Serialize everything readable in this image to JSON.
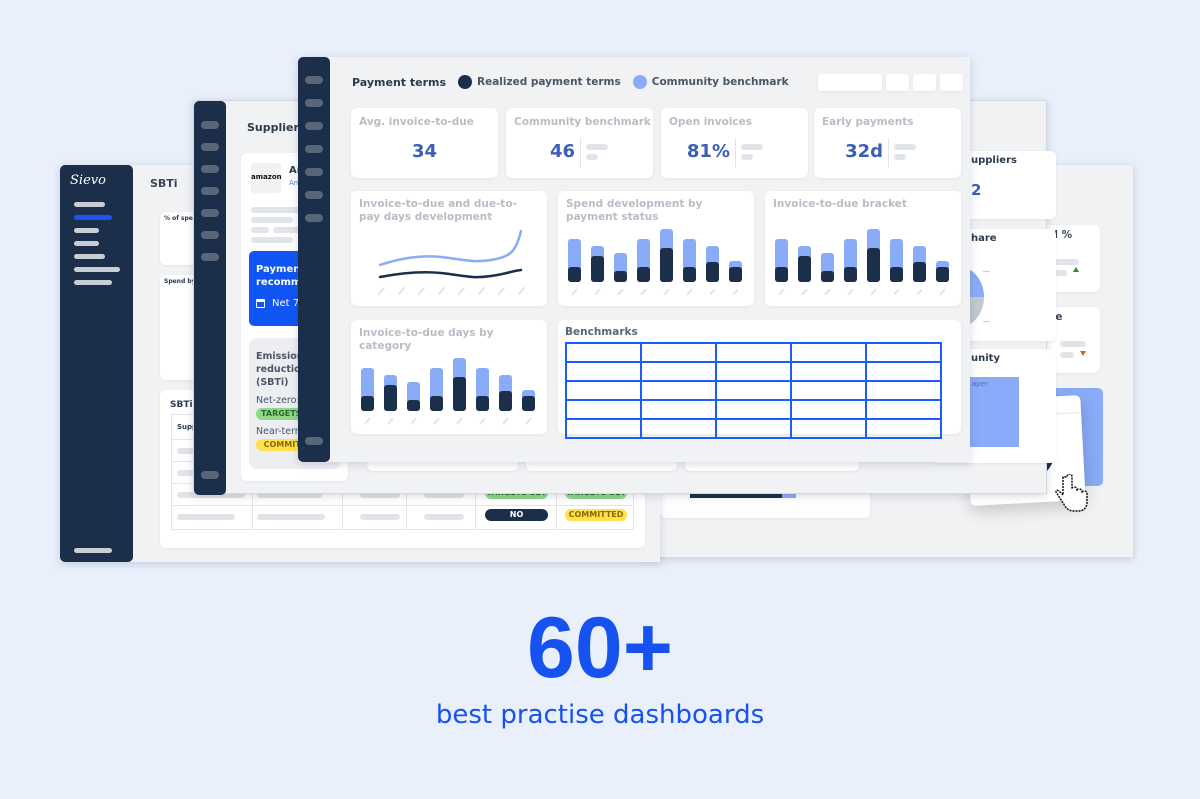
{
  "colors": {
    "navy": "#1b2f4a",
    "light_blue": "#8aabf7",
    "accent": "#1652f0",
    "kpi_value": "#3b5fb8"
  },
  "far_window": {
    "cards": [
      {
        "label": "nd %"
      },
      {
        "label": "ore"
      }
    ]
  },
  "left_window": {
    "logo": "Sievo",
    "title": "SBTi",
    "card_spend_pct_label": "% of spend",
    "card_spend_by_label": "Spend by",
    "sbti_table": {
      "title": "SBTi",
      "header": "Supplier",
      "rows": [
        {
          "a": "TARGETS SET",
          "b": "TARGETS SET"
        },
        {
          "a": "NO",
          "b": "COMMITTED"
        }
      ]
    }
  },
  "supplier_window": {
    "title": "Supplier 3",
    "supplier_logo": "amazon",
    "supplier_name": "Amazon",
    "supplier_link": "Am",
    "payment_recommendation": {
      "title": "Payment recommendation",
      "value": "Net 7",
      "icon": "calendar-icon"
    },
    "emission": {
      "title": "Emission reduction (SBTi)",
      "net_zero_label": "Net-zero:",
      "net_zero_status": "TARGETS SET",
      "near_term_label": "Near-term:",
      "near_term_status": "COMMITTED"
    },
    "right_cards": {
      "suppliers_label": "uppliers",
      "suppliers_value": "2",
      "share_label": "hare",
      "community_label": "unity",
      "community_sub": "aper"
    }
  },
  "front_window": {
    "title": "Payment terms",
    "legend": [
      {
        "label": "Realized payment terms",
        "color": "#1b2f4a"
      },
      {
        "label": "Community benchmark",
        "color": "#8aabf7"
      }
    ],
    "kpis": [
      {
        "label": "Avg. invoice-to-due",
        "value": "34"
      },
      {
        "label": "Community benchmark",
        "value": "46"
      },
      {
        "label": "Open invoices",
        "value": "81%"
      },
      {
        "label": "Early payments",
        "value": "32d"
      }
    ],
    "charts": {
      "line_title": "Invoice-to-due and due-to-pay days development",
      "spend_title": "Spend development by payment status",
      "bracket_title": "Invoice-to-due bracket",
      "category_title": "Invoice-to-due days by category",
      "benchmarks_title": "Benchmarks"
    }
  },
  "chart_data": {
    "type": "bar",
    "stacked": true,
    "series": [
      {
        "name": "Realized payment terms",
        "values": [
          15,
          26,
          11,
          15,
          34,
          15,
          20,
          15
        ]
      },
      {
        "name": "Community benchmark",
        "values": [
          28,
          10,
          18,
          28,
          19,
          28,
          16,
          6
        ]
      }
    ]
  },
  "promo": {
    "headline": "60+",
    "subline": "best practise dashboards"
  }
}
